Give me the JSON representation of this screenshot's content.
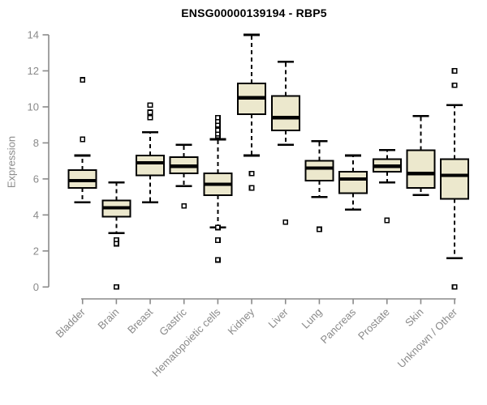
{
  "chart_data": {
    "type": "boxplot",
    "title": "ENSG00000139194 - RBP5",
    "ylabel": "Expression",
    "xlabel": "",
    "ylim": [
      0,
      14
    ],
    "yticks": [
      0,
      2,
      4,
      6,
      8,
      10,
      12,
      14
    ],
    "grid": false,
    "legend": null,
    "categories": [
      "Bladder",
      "Brain",
      "Breast",
      "Gastric",
      "Hematopoietic cells",
      "Kidney",
      "Liver",
      "Lung",
      "Pancreas",
      "Prostate",
      "Skin",
      "Unknown / Other"
    ],
    "series": [
      {
        "name": "Bladder",
        "whisker_low": 4.7,
        "q1": 5.5,
        "median": 5.9,
        "q3": 6.5,
        "whisker_high": 7.3,
        "outliers": [
          8.2,
          11.5
        ]
      },
      {
        "name": "Brain",
        "whisker_low": 3.0,
        "q1": 3.9,
        "median": 4.4,
        "q3": 4.8,
        "whisker_high": 5.8,
        "outliers": [
          2.6,
          2.4,
          0.0
        ]
      },
      {
        "name": "Breast",
        "whisker_low": 4.7,
        "q1": 6.2,
        "median": 6.9,
        "q3": 7.3,
        "whisker_high": 8.6,
        "outliers": [
          9.4,
          9.7,
          10.1
        ]
      },
      {
        "name": "Gastric",
        "whisker_low": 5.6,
        "q1": 6.3,
        "median": 6.7,
        "q3": 7.2,
        "whisker_high": 7.9,
        "outliers": [
          4.5
        ]
      },
      {
        "name": "Hematopoietic cells",
        "whisker_low": 3.3,
        "q1": 5.1,
        "median": 5.7,
        "q3": 6.3,
        "whisker_high": 8.2,
        "outliers": [
          8.4,
          8.5,
          8.7,
          9.0,
          9.2,
          9.4,
          3.3,
          2.6,
          1.5
        ]
      },
      {
        "name": "Kidney",
        "whisker_low": 7.3,
        "q1": 9.6,
        "median": 10.5,
        "q3": 11.3,
        "whisker_high": 14.0,
        "outliers": [
          6.3,
          5.5
        ]
      },
      {
        "name": "Liver",
        "whisker_low": 7.9,
        "q1": 8.7,
        "median": 9.4,
        "q3": 10.6,
        "whisker_high": 12.5,
        "outliers": [
          3.6
        ]
      },
      {
        "name": "Lung",
        "whisker_low": 5.0,
        "q1": 5.9,
        "median": 6.6,
        "q3": 7.0,
        "whisker_high": 8.1,
        "outliers": [
          3.2
        ]
      },
      {
        "name": "Pancreas",
        "whisker_low": 4.3,
        "q1": 5.2,
        "median": 6.0,
        "q3": 6.4,
        "whisker_high": 7.3,
        "outliers": []
      },
      {
        "name": "Prostate",
        "whisker_low": 5.8,
        "q1": 6.4,
        "median": 6.7,
        "q3": 7.1,
        "whisker_high": 7.6,
        "outliers": [
          3.7
        ]
      },
      {
        "name": "Skin",
        "whisker_low": 5.1,
        "q1": 5.5,
        "median": 6.3,
        "q3": 7.6,
        "whisker_high": 9.5,
        "outliers": []
      },
      {
        "name": "Unknown / Other",
        "whisker_low": 1.6,
        "q1": 4.9,
        "median": 6.2,
        "q3": 7.1,
        "whisker_high": 10.1,
        "outliers": [
          12.0,
          11.2,
          0.0
        ]
      }
    ],
    "colors": {
      "box_fill": "#ece8cd",
      "box_stroke": "#000000",
      "median": "#000000",
      "whisker": "#000000",
      "outlier_fill": "#ffffff",
      "outlier_stroke": "#000000",
      "axis": "#8a8a8a",
      "tick_label": "#8a8a8a",
      "title": "#000000",
      "background": "#ffffff"
    }
  }
}
